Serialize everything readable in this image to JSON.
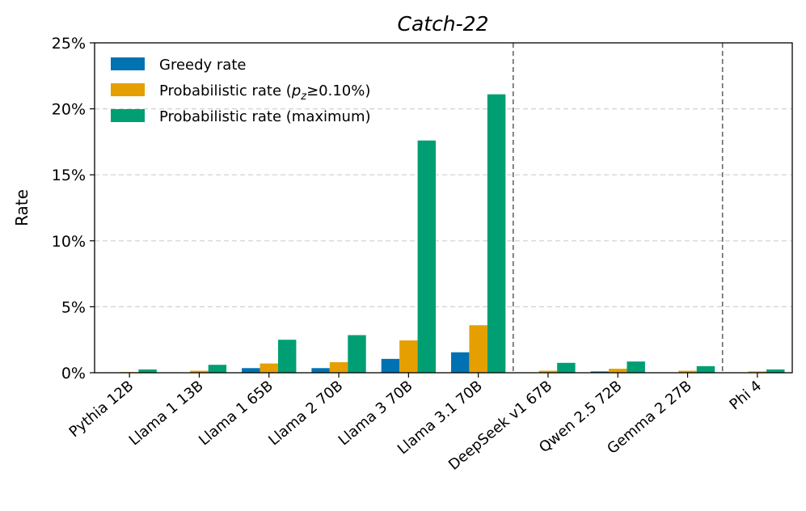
{
  "chart_data": {
    "type": "bar",
    "title": "Catch-22",
    "xlabel": "",
    "ylabel": "Rate",
    "ylim": [
      0,
      25
    ],
    "yticks": [
      0,
      5,
      10,
      15,
      20,
      25
    ],
    "ytick_labels": [
      "0%",
      "5%",
      "10%",
      "15%",
      "20%",
      "25%"
    ],
    "grid": "y-dashed",
    "legend_position": "top-left",
    "categories": [
      "Pythia 12B",
      "Llama 1 13B",
      "Llama 1 65B",
      "Llama 2 70B",
      "Llama 3 70B",
      "Llama 3.1 70B",
      "DeepSeek v1 67B",
      "Qwen 2.5 72B",
      "Gemma 2 27B",
      "Phi 4"
    ],
    "series": [
      {
        "name": "Greedy rate",
        "legend": {
          "pre": "Greedy rate"
        },
        "color": "#0072b2",
        "values": [
          0,
          0,
          0.35,
          0.35,
          1.05,
          1.55,
          0,
          0.1,
          0,
          0
        ]
      },
      {
        "name": "Probabilistic rate (pz≥0.10%)",
        "legend": {
          "pre": "Probabilistic rate (",
          "var": "p",
          "sub": "z",
          "post": "≥0.10%)"
        },
        "color": "#e69f00",
        "values": [
          0.05,
          0.15,
          0.7,
          0.8,
          2.45,
          3.6,
          0.15,
          0.3,
          0.15,
          0.1
        ]
      },
      {
        "name": "Probabilistic rate (maximum)",
        "legend": {
          "pre": "Probabilistic rate (maximum)"
        },
        "color": "#009e73",
        "values": [
          0.25,
          0.6,
          2.5,
          2.85,
          17.6,
          21.1,
          0.75,
          0.85,
          0.5,
          0.25
        ]
      }
    ],
    "separators_after_category": [
      5,
      8
    ]
  }
}
